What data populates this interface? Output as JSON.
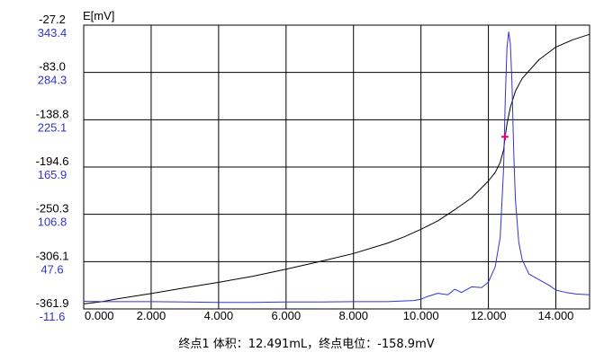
{
  "chart_data": {
    "type": "line",
    "ylabel": "E[mV]",
    "xlabel": "",
    "xlim": [
      0,
      15
    ],
    "x_ticks": [
      "0.000",
      "2.000",
      "4.000",
      "6.000",
      "8.000",
      "10.000",
      "12.000",
      "14.000"
    ],
    "y_ticks_black": [
      "-27.2",
      "-83.0",
      "-138.8",
      "-194.6",
      "-250.3",
      "-306.1",
      "-361.9"
    ],
    "y_ticks_blue": [
      "343.4",
      "284.3",
      "225.1",
      "165.9",
      "106.8",
      "47.6",
      "-11.6"
    ],
    "ylim_black": [
      -361.9,
      -27.2
    ],
    "ylim_blue": [
      -11.6,
      343.4
    ],
    "grid": true,
    "series": [
      {
        "color": "#000000",
        "axis": "left-black",
        "x": [
          0,
          0.5,
          1,
          2,
          3,
          4,
          5,
          6,
          7,
          8,
          9,
          9.5,
          10,
          10.5,
          11,
          11.5,
          12,
          12.2,
          12.35,
          12.45,
          12.491,
          12.55,
          12.65,
          12.8,
          13,
          13.5,
          14,
          14.5,
          15
        ],
        "values": [
          -356.0,
          -353.5,
          -350.0,
          -343.8,
          -337.0,
          -330.5,
          -323.5,
          -315.0,
          -306.0,
          -296.5,
          -284.5,
          -277.0,
          -268.0,
          -258.0,
          -245.0,
          -231.0,
          -211.0,
          -201.0,
          -189.0,
          -174.0,
          -160.0,
          -144.0,
          -124.0,
          -105.0,
          -90.0,
          -68.0,
          -53.0,
          -44.5,
          -38.0
        ]
      },
      {
        "color": "#3333cc",
        "axis": "right-blue",
        "x": [
          0,
          0.5,
          1,
          2,
          3,
          4,
          5,
          6,
          7,
          8,
          9,
          9.8,
          10,
          10.2,
          10.5,
          10.8,
          11,
          11.2,
          11.5,
          11.8,
          12.0,
          12.2,
          12.35,
          12.45,
          12.5,
          12.55,
          12.6,
          12.65,
          12.7,
          12.75,
          12.8,
          12.9,
          13.0,
          13.2,
          13.5,
          13.8,
          14.0,
          14.3,
          14.6,
          15
        ],
        "values": [
          -2.0,
          -2.5,
          -2.5,
          -2.5,
          -3.0,
          -3.5,
          -3.5,
          -3.0,
          -3.0,
          -2.5,
          -2.5,
          -1.0,
          0.5,
          4.0,
          8.0,
          6.0,
          13.0,
          9.0,
          16.0,
          15.0,
          22.0,
          41.0,
          78.0,
          165.0,
          250.0,
          315.0,
          335.0,
          320.0,
          270.0,
          185.0,
          125.0,
          72.0,
          50.0,
          32.0,
          25.0,
          18.0,
          12.0,
          9.0,
          7.0,
          6.0
        ]
      }
    ],
    "endpoint_marker": {
      "x": 12.491,
      "value": -158.9,
      "color": "#e0007a"
    },
    "footer_text": "终点1 体积：12.491mL，终点电位：-158.9mV"
  },
  "colors": {
    "black_axis": "#000000",
    "blue_axis": "#3333cc",
    "grid": "#000000"
  }
}
